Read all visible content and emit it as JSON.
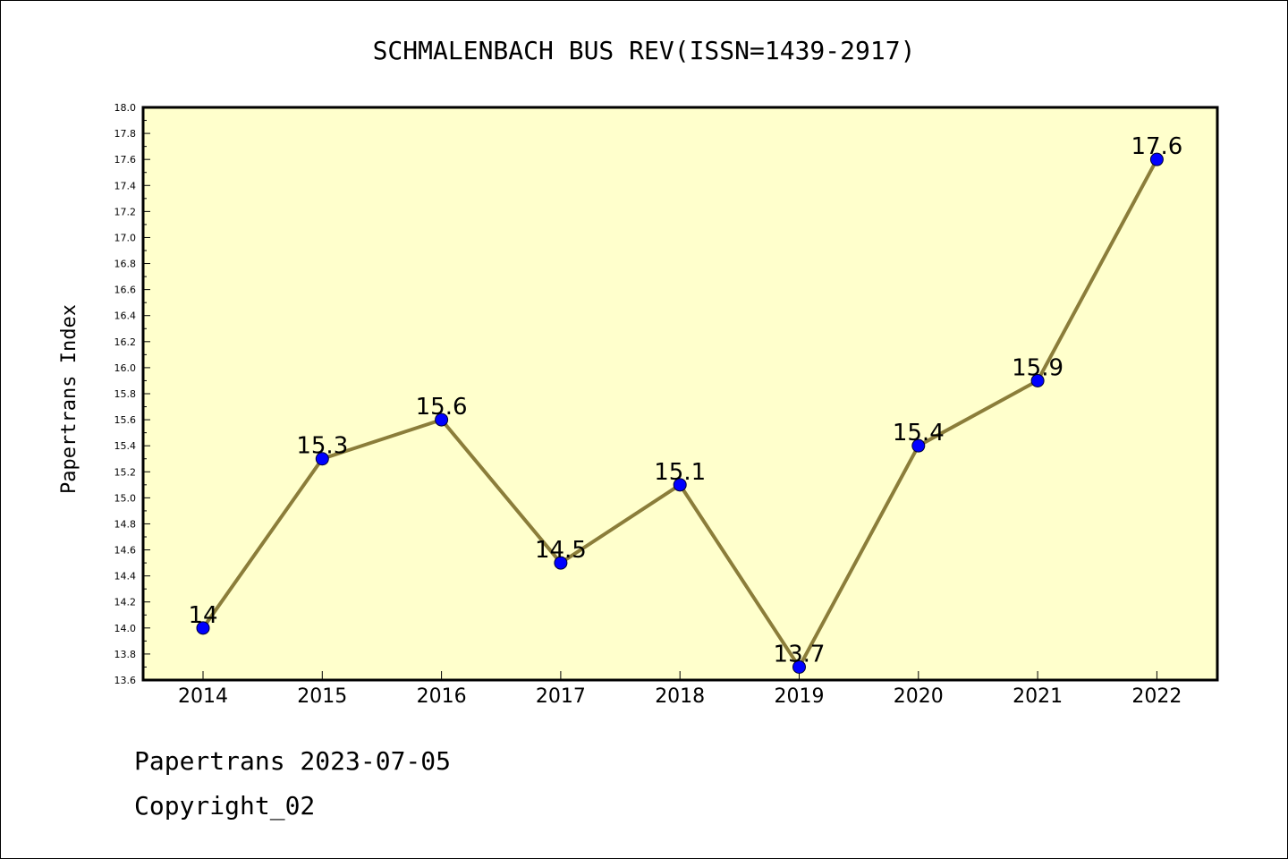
{
  "chart_data": {
    "type": "line",
    "title": "SCHMALENBACH BUS REV(ISSN=1439-2917)",
    "ylabel": "Papertrans Index",
    "xlabel": "",
    "categories": [
      "2014",
      "2015",
      "2016",
      "2017",
      "2018",
      "2019",
      "2020",
      "2021",
      "2022"
    ],
    "values": [
      14,
      15.3,
      15.6,
      14.5,
      15.1,
      13.7,
      15.4,
      15.9,
      17.6
    ],
    "data_labels": [
      "14",
      "15.3",
      "15.6",
      "14.5",
      "15.1",
      "13.7",
      "15.4",
      "15.9",
      "17.6"
    ],
    "ylim": [
      13.6,
      18.0
    ],
    "ytick_step": 0.2,
    "grid": false,
    "legend": "none",
    "colors": {
      "line": "#8b7d3a",
      "marker": "#0000ff",
      "plot_background": "#ffffcc"
    }
  },
  "footer": {
    "line1": "Papertrans 2023-07-05",
    "line2": "Copyright_02"
  }
}
